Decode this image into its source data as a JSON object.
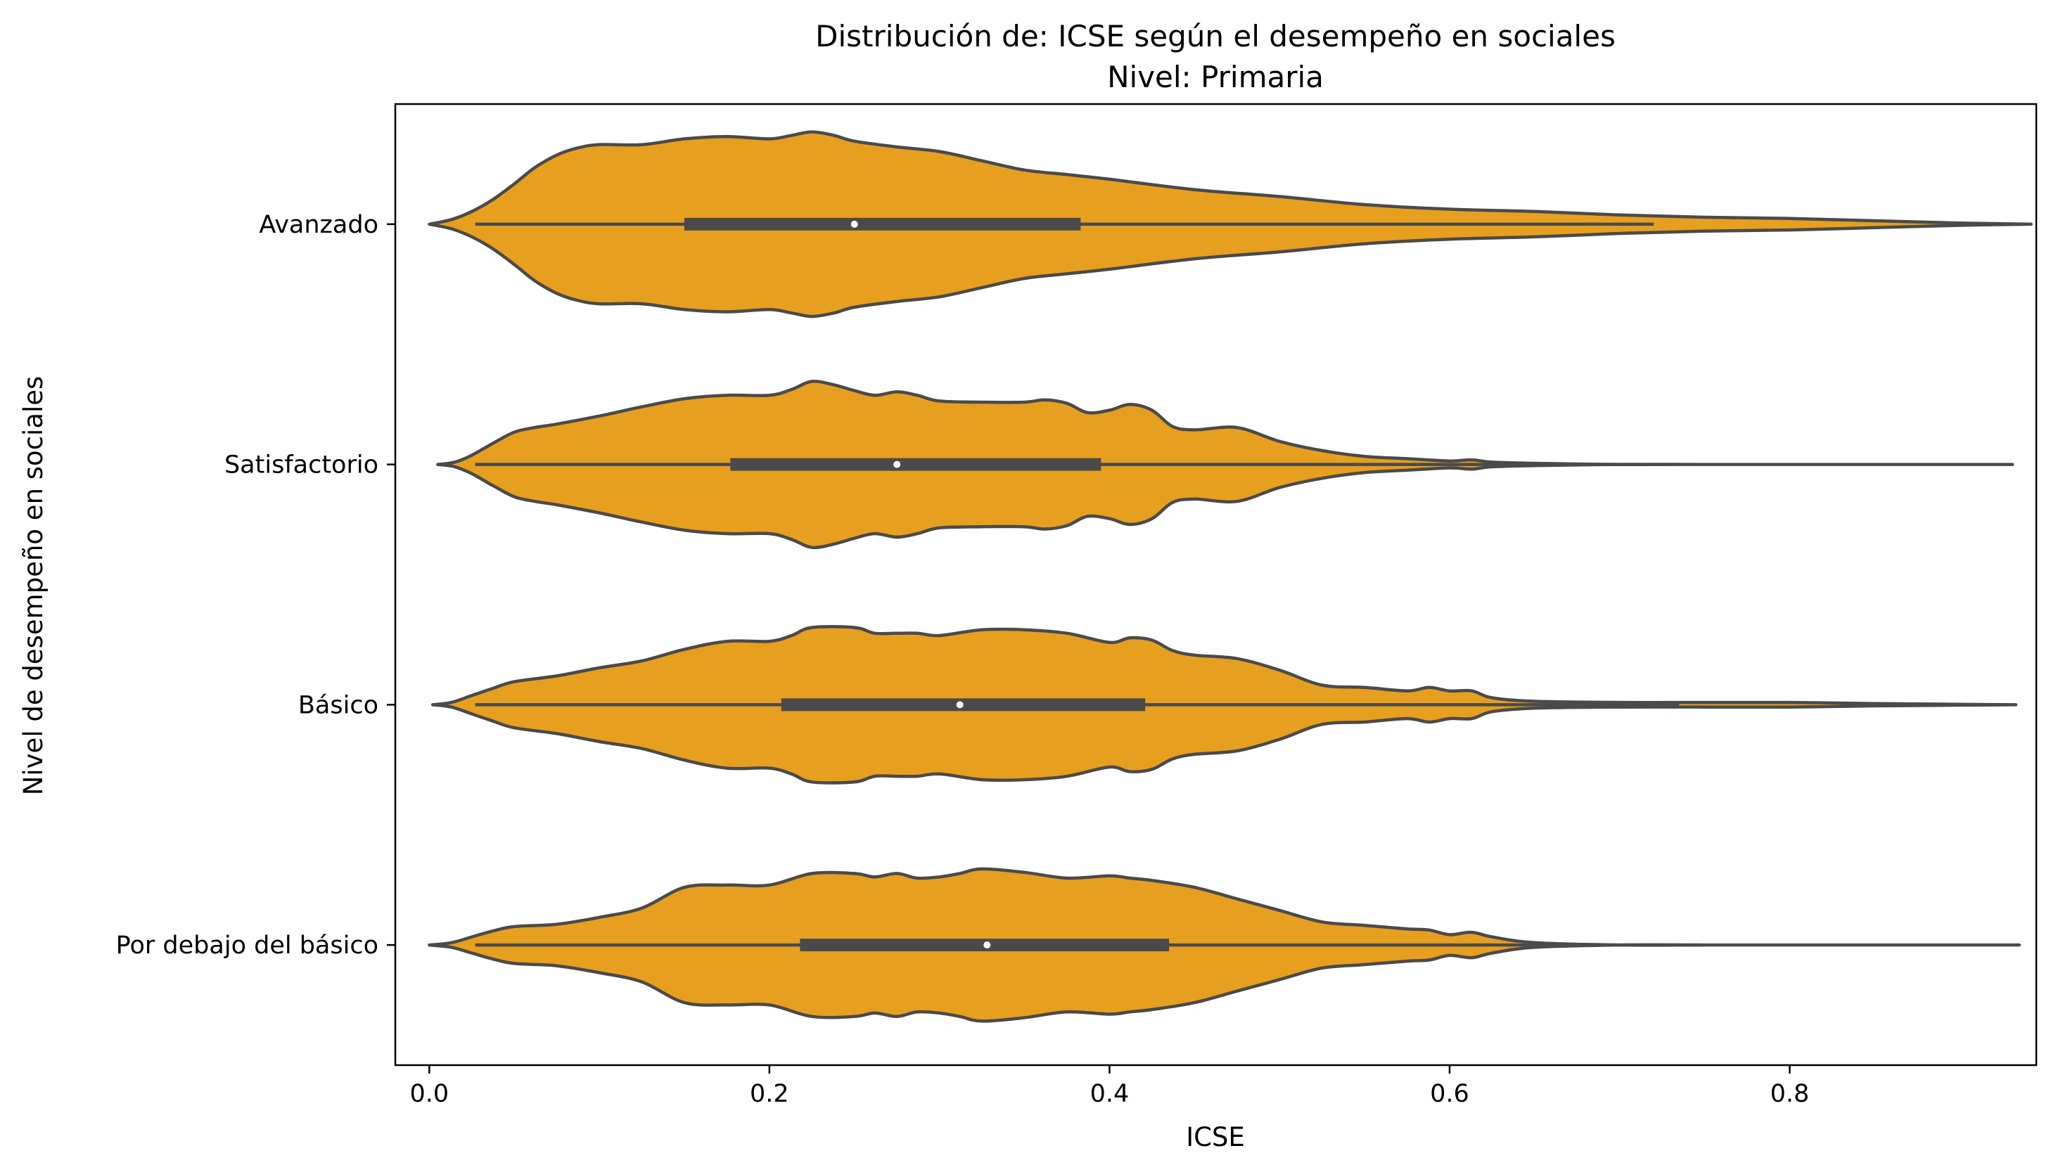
{
  "chart_data": {
    "type": "violin",
    "title": "Distribución de: ICSE según el desempeño en sociales",
    "subtitle": "Nivel: Primaria",
    "xlabel": "ICSE",
    "ylabel": "Nivel de desempeño en sociales",
    "xlim": [
      -0.02,
      0.945
    ],
    "xticks": [
      "0.0",
      "0.2",
      "0.4",
      "0.6",
      "0.8"
    ],
    "grid": false,
    "violin_color": "#e69f1f",
    "line_color": "#4a4a4a",
    "categories": [
      {
        "name": "Avanzado",
        "box": {
          "whisker_low": 0.027,
          "q1": 0.15,
          "median": 0.25,
          "q3": 0.383,
          "whisker_high": 0.72
        },
        "density_profile": [
          [
            0.0,
            0.0
          ],
          [
            0.013,
            0.04
          ],
          [
            0.025,
            0.11
          ],
          [
            0.037,
            0.21
          ],
          [
            0.05,
            0.35
          ],
          [
            0.062,
            0.49
          ],
          [
            0.075,
            0.6
          ],
          [
            0.087,
            0.66
          ],
          [
            0.1,
            0.69
          ],
          [
            0.125,
            0.69
          ],
          [
            0.15,
            0.74
          ],
          [
            0.175,
            0.76
          ],
          [
            0.2,
            0.74
          ],
          [
            0.213,
            0.77
          ],
          [
            0.225,
            0.8
          ],
          [
            0.238,
            0.77
          ],
          [
            0.25,
            0.72
          ],
          [
            0.275,
            0.67
          ],
          [
            0.3,
            0.63
          ],
          [
            0.325,
            0.55
          ],
          [
            0.35,
            0.47
          ],
          [
            0.375,
            0.43
          ],
          [
            0.4,
            0.39
          ],
          [
            0.45,
            0.3
          ],
          [
            0.5,
            0.24
          ],
          [
            0.55,
            0.17
          ],
          [
            0.6,
            0.13
          ],
          [
            0.65,
            0.11
          ],
          [
            0.7,
            0.08
          ],
          [
            0.75,
            0.06
          ],
          [
            0.8,
            0.05
          ],
          [
            0.85,
            0.03
          ],
          [
            0.9,
            0.01
          ],
          [
            0.942,
            0.0
          ]
        ]
      },
      {
        "name": "Satisfactorio",
        "box": {
          "whisker_low": 0.027,
          "q1": 0.177,
          "median": 0.275,
          "q3": 0.395,
          "whisker_high": 0.71
        },
        "density_profile": [
          [
            0.005,
            0.0
          ],
          [
            0.015,
            0.02
          ],
          [
            0.025,
            0.08
          ],
          [
            0.037,
            0.18
          ],
          [
            0.05,
            0.28
          ],
          [
            0.062,
            0.32
          ],
          [
            0.075,
            0.35
          ],
          [
            0.1,
            0.42
          ],
          [
            0.125,
            0.5
          ],
          [
            0.15,
            0.57
          ],
          [
            0.175,
            0.6
          ],
          [
            0.2,
            0.6
          ],
          [
            0.213,
            0.65
          ],
          [
            0.225,
            0.72
          ],
          [
            0.238,
            0.69
          ],
          [
            0.25,
            0.64
          ],
          [
            0.262,
            0.6
          ],
          [
            0.275,
            0.63
          ],
          [
            0.287,
            0.6
          ],
          [
            0.3,
            0.55
          ],
          [
            0.325,
            0.54
          ],
          [
            0.35,
            0.54
          ],
          [
            0.362,
            0.56
          ],
          [
            0.375,
            0.53
          ],
          [
            0.387,
            0.45
          ],
          [
            0.4,
            0.47
          ],
          [
            0.412,
            0.52
          ],
          [
            0.425,
            0.47
          ],
          [
            0.437,
            0.33
          ],
          [
            0.45,
            0.3
          ],
          [
            0.475,
            0.32
          ],
          [
            0.5,
            0.2
          ],
          [
            0.525,
            0.12
          ],
          [
            0.55,
            0.07
          ],
          [
            0.575,
            0.05
          ],
          [
            0.6,
            0.03
          ],
          [
            0.613,
            0.04
          ],
          [
            0.625,
            0.02
          ],
          [
            0.65,
            0.01
          ],
          [
            0.7,
            0.0
          ],
          [
            0.75,
            0.0
          ],
          [
            0.8,
            0.0
          ],
          [
            0.85,
            0.0
          ],
          [
            0.931,
            0.0
          ]
        ]
      },
      {
        "name": "Básico",
        "box": {
          "whisker_low": 0.027,
          "q1": 0.207,
          "median": 0.312,
          "q3": 0.421,
          "whisker_high": 0.735
        },
        "density_profile": [
          [
            0.002,
            0.0
          ],
          [
            0.013,
            0.02
          ],
          [
            0.025,
            0.08
          ],
          [
            0.037,
            0.14
          ],
          [
            0.05,
            0.2
          ],
          [
            0.075,
            0.25
          ],
          [
            0.1,
            0.32
          ],
          [
            0.125,
            0.38
          ],
          [
            0.15,
            0.48
          ],
          [
            0.175,
            0.55
          ],
          [
            0.2,
            0.55
          ],
          [
            0.213,
            0.6
          ],
          [
            0.225,
            0.67
          ],
          [
            0.25,
            0.67
          ],
          [
            0.262,
            0.62
          ],
          [
            0.275,
            0.62
          ],
          [
            0.287,
            0.62
          ],
          [
            0.3,
            0.6
          ],
          [
            0.325,
            0.65
          ],
          [
            0.35,
            0.65
          ],
          [
            0.375,
            0.62
          ],
          [
            0.4,
            0.54
          ],
          [
            0.412,
            0.58
          ],
          [
            0.425,
            0.56
          ],
          [
            0.437,
            0.47
          ],
          [
            0.45,
            0.43
          ],
          [
            0.475,
            0.4
          ],
          [
            0.5,
            0.3
          ],
          [
            0.525,
            0.17
          ],
          [
            0.55,
            0.15
          ],
          [
            0.575,
            0.12
          ],
          [
            0.588,
            0.15
          ],
          [
            0.6,
            0.12
          ],
          [
            0.613,
            0.12
          ],
          [
            0.625,
            0.06
          ],
          [
            0.65,
            0.03
          ],
          [
            0.7,
            0.02
          ],
          [
            0.75,
            0.02
          ],
          [
            0.8,
            0.02
          ],
          [
            0.85,
            0.01
          ],
          [
            0.933,
            0.0
          ]
        ]
      },
      {
        "name": "Por debajo del básico",
        "box": {
          "whisker_low": 0.027,
          "q1": 0.218,
          "median": 0.328,
          "q3": 0.435,
          "whisker_high": 0.748
        },
        "density_profile": [
          [
            0.0,
            0.0
          ],
          [
            0.013,
            0.02
          ],
          [
            0.025,
            0.07
          ],
          [
            0.037,
            0.12
          ],
          [
            0.05,
            0.16
          ],
          [
            0.075,
            0.18
          ],
          [
            0.1,
            0.24
          ],
          [
            0.125,
            0.32
          ],
          [
            0.15,
            0.5
          ],
          [
            0.175,
            0.52
          ],
          [
            0.2,
            0.52
          ],
          [
            0.225,
            0.62
          ],
          [
            0.25,
            0.62
          ],
          [
            0.262,
            0.59
          ],
          [
            0.275,
            0.62
          ],
          [
            0.287,
            0.58
          ],
          [
            0.3,
            0.59
          ],
          [
            0.312,
            0.62
          ],
          [
            0.325,
            0.66
          ],
          [
            0.35,
            0.63
          ],
          [
            0.375,
            0.58
          ],
          [
            0.4,
            0.6
          ],
          [
            0.412,
            0.58
          ],
          [
            0.425,
            0.56
          ],
          [
            0.45,
            0.5
          ],
          [
            0.475,
            0.4
          ],
          [
            0.5,
            0.3
          ],
          [
            0.525,
            0.2
          ],
          [
            0.55,
            0.17
          ],
          [
            0.575,
            0.14
          ],
          [
            0.588,
            0.13
          ],
          [
            0.6,
            0.09
          ],
          [
            0.613,
            0.11
          ],
          [
            0.625,
            0.07
          ],
          [
            0.65,
            0.02
          ],
          [
            0.7,
            0.0
          ],
          [
            0.75,
            0.0
          ],
          [
            0.8,
            0.0
          ],
          [
            0.85,
            0.0
          ],
          [
            0.935,
            0.0
          ]
        ]
      }
    ]
  }
}
